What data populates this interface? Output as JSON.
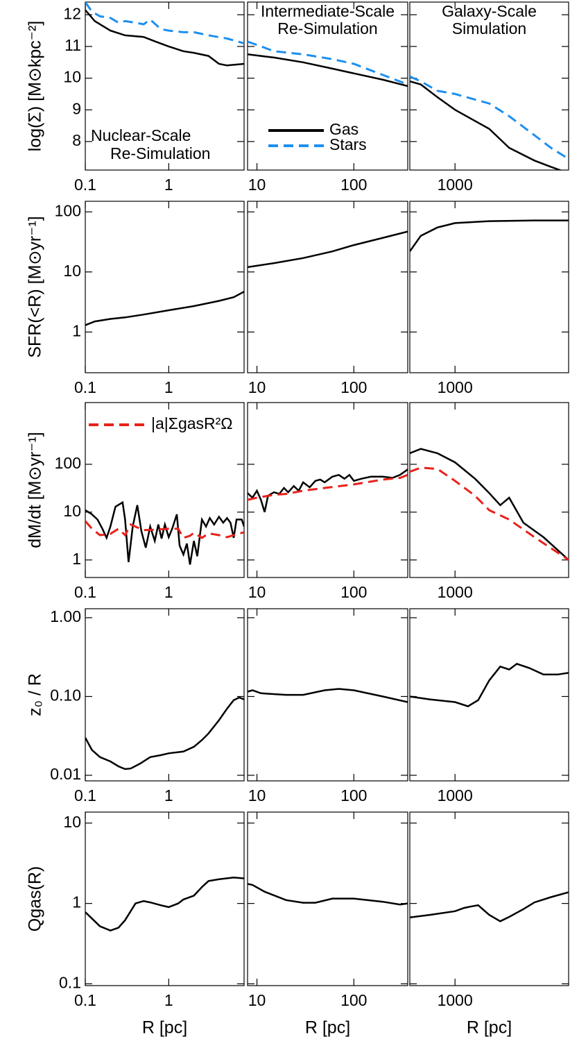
{
  "chart_data": [
    {
      "type": "line",
      "ylabel": "log(Σ)  [M⊙kpc⁻²]",
      "xlim": [
        0.1,
        8
      ],
      "xticks": [
        0.1,
        1
      ],
      "ylim": [
        7.1,
        12.4
      ],
      "yticks": [
        8,
        9,
        10,
        11,
        12
      ],
      "log_x": true,
      "log_y": false,
      "annotation": [
        "Nuclear-Scale",
        "Re-Simulation"
      ],
      "series": [
        {
          "color": "#000000",
          "linestyle": "solid",
          "x": [
            0.1,
            0.13,
            0.2,
            0.3,
            0.5,
            0.7,
            1,
            1.5,
            2,
            3,
            4,
            5,
            8
          ],
          "values": [
            12.15,
            11.8,
            11.5,
            11.35,
            11.3,
            11.15,
            11.0,
            10.85,
            10.8,
            10.7,
            10.45,
            10.4,
            10.45
          ]
        },
        {
          "color": "#1e8fef",
          "linestyle": "dashed",
          "x": [
            0.1,
            0.12,
            0.15,
            0.2,
            0.25,
            0.3,
            0.4,
            0.5,
            0.6,
            0.8,
            1,
            1.5,
            2,
            3,
            5,
            8
          ],
          "values": [
            12.4,
            12.1,
            11.95,
            11.9,
            11.75,
            11.8,
            11.75,
            11.7,
            11.85,
            11.55,
            11.5,
            11.45,
            11.45,
            11.35,
            11.25,
            11.1
          ]
        }
      ]
    },
    {
      "type": "line",
      "xlim": [
        8,
        360
      ],
      "xticks": [
        10,
        100
      ],
      "ylim": [
        7.1,
        12.4
      ],
      "log_x": true,
      "log_y": false,
      "annotation": [
        "Intermediate-Scale",
        "Re-Simulation"
      ],
      "legend": "lower left",
      "series": [
        {
          "name": "Gas",
          "color": "#000000",
          "linestyle": "solid",
          "x": [
            8,
            15,
            30,
            60,
            100,
            200,
            360
          ],
          "values": [
            10.75,
            10.65,
            10.5,
            10.3,
            10.15,
            9.95,
            9.75
          ]
        },
        {
          "name": "Stars",
          "color": "#1e8fef",
          "linestyle": "dashed",
          "x": [
            8,
            10,
            15,
            30,
            60,
            100,
            200,
            360
          ],
          "values": [
            11.15,
            11.05,
            10.85,
            10.75,
            10.6,
            10.45,
            10.1,
            9.8
          ]
        }
      ]
    },
    {
      "type": "line",
      "xlim": [
        400,
        10000
      ],
      "xticks": [
        1000
      ],
      "ylim": [
        7.1,
        12.4
      ],
      "log_x": true,
      "log_y": false,
      "annotation": [
        "Galaxy-Scale",
        "Simulation"
      ],
      "series": [
        {
          "color": "#000000",
          "linestyle": "solid",
          "x": [
            400,
            500,
            700,
            1000,
            2000,
            3000,
            5000,
            7000,
            10000
          ],
          "values": [
            9.9,
            9.8,
            9.4,
            9.0,
            8.4,
            7.8,
            7.4,
            7.2,
            7.0
          ]
        },
        {
          "color": "#1e8fef",
          "linestyle": "dashed",
          "x": [
            400,
            500,
            700,
            1000,
            2000,
            3000,
            5000,
            7000,
            10000
          ],
          "values": [
            10.05,
            9.9,
            9.6,
            9.5,
            9.2,
            8.8,
            8.2,
            7.8,
            7.45
          ]
        }
      ]
    },
    {
      "type": "line",
      "ylabel": "SFR(<R)  [M⊙yr⁻¹]",
      "xlim": [
        0.1,
        8
      ],
      "xticks": [
        0.1,
        1
      ],
      "ylim": [
        0.21,
        150
      ],
      "yticks": [
        1,
        10,
        100
      ],
      "log_x": true,
      "log_y": true,
      "series": [
        {
          "color": "#000000",
          "linestyle": "solid",
          "x": [
            0.1,
            0.13,
            0.2,
            0.3,
            0.5,
            1,
            2,
            4,
            6,
            8
          ],
          "values": [
            1.3,
            1.5,
            1.65,
            1.75,
            1.95,
            2.3,
            2.7,
            3.3,
            3.8,
            4.7
          ]
        }
      ]
    },
    {
      "type": "line",
      "xlim": [
        8,
        360
      ],
      "xticks": [
        10,
        100
      ],
      "ylim": [
        0.21,
        150
      ],
      "log_x": true,
      "log_y": true,
      "series": [
        {
          "color": "#000000",
          "linestyle": "solid",
          "x": [
            8,
            15,
            30,
            60,
            100,
            200,
            360
          ],
          "values": [
            12,
            14,
            17,
            22,
            28,
            37,
            47
          ]
        }
      ]
    },
    {
      "type": "line",
      "xlim": [
        400,
        10000
      ],
      "xticks": [
        1000
      ],
      "ylim": [
        0.21,
        150
      ],
      "log_x": true,
      "log_y": true,
      "series": [
        {
          "color": "#000000",
          "linestyle": "solid",
          "x": [
            400,
            500,
            700,
            1000,
            2000,
            5000,
            10000
          ],
          "values": [
            22,
            40,
            55,
            65,
            70,
            72,
            72
          ]
        }
      ]
    },
    {
      "type": "line",
      "ylabel": "dM/dt [M⊙yr⁻¹]",
      "xlim": [
        0.1,
        8
      ],
      "xticks": [
        0.1,
        1
      ],
      "ylim": [
        0.43,
        1950
      ],
      "yticks": [
        1,
        10,
        100
      ],
      "log_x": true,
      "log_y": true,
      "legend": "upper left",
      "series": [
        {
          "color": "#000000",
          "linestyle": "solid",
          "x": [
            0.1,
            0.12,
            0.14,
            0.16,
            0.18,
            0.2,
            0.23,
            0.28,
            0.3,
            0.33,
            0.37,
            0.42,
            0.47,
            0.53,
            0.6,
            0.68,
            0.75,
            0.82,
            0.9,
            1,
            1.1,
            1.25,
            1.35,
            1.5,
            1.65,
            1.8,
            2,
            2.2,
            2.5,
            2.8,
            3.1,
            3.5,
            4,
            4.5,
            5,
            5.5,
            6,
            6.5,
            7.5,
            8
          ],
          "values": [
            11,
            9,
            7,
            4.5,
            2.9,
            5,
            13,
            16,
            7,
            0.9,
            5,
            14,
            4,
            1.8,
            5,
            2.5,
            5.5,
            2.8,
            5.5,
            3,
            4.5,
            9,
            2,
            1.3,
            2.2,
            0.8,
            2.5,
            1.2,
            7,
            5,
            7.5,
            5.5,
            8,
            6,
            7.5,
            6,
            2.9,
            7,
            7,
            5
          ]
        },
        {
          "name": "|a|ΣgasR²Ω",
          "color": "#e8211b",
          "linestyle": "dashed",
          "x": [
            0.1,
            0.12,
            0.15,
            0.2,
            0.25,
            0.3,
            0.35,
            0.5,
            0.7,
            1,
            1.3,
            1.5,
            1.8,
            2,
            2.5,
            3,
            4,
            5,
            6,
            8
          ],
          "values": [
            6.5,
            4.5,
            3.3,
            3.5,
            4.5,
            3.3,
            5.5,
            4.2,
            4.3,
            4.5,
            4.5,
            2.9,
            3.2,
            3.7,
            2.9,
            3.6,
            3.3,
            3.0,
            3.3,
            3.8
          ]
        }
      ]
    },
    {
      "type": "line",
      "xlim": [
        8,
        360
      ],
      "xticks": [
        10,
        100
      ],
      "ylim": [
        0.43,
        1950
      ],
      "log_x": true,
      "log_y": true,
      "series": [
        {
          "color": "#000000",
          "linestyle": "solid",
          "x": [
            8,
            9,
            10,
            11,
            12,
            13,
            15,
            17,
            19,
            21,
            24,
            27,
            30,
            35,
            40,
            45,
            50,
            60,
            70,
            80,
            90,
            100,
            120,
            150,
            200,
            250,
            300,
            360
          ],
          "values": [
            25,
            20,
            28,
            18,
            10,
            22,
            26,
            24,
            32,
            26,
            35,
            28,
            42,
            33,
            45,
            48,
            42,
            55,
            60,
            50,
            60,
            45,
            50,
            55,
            55,
            52,
            60,
            78
          ]
        },
        {
          "color": "#e8211b",
          "linestyle": "dashed",
          "x": [
            8,
            10,
            15,
            20,
            30,
            50,
            100,
            200,
            300,
            360
          ],
          "values": [
            18,
            20,
            23,
            24,
            28,
            32,
            38,
            48,
            52,
            60
          ]
        }
      ]
    },
    {
      "type": "line",
      "xlim": [
        400,
        10000
      ],
      "xticks": [
        1000
      ],
      "ylim": [
        0.43,
        1950
      ],
      "log_x": true,
      "log_y": true,
      "series": [
        {
          "color": "#000000",
          "linestyle": "solid",
          "x": [
            400,
            500,
            700,
            1000,
            1500,
            2000,
            2500,
            3000,
            4000,
            6000,
            10000
          ],
          "values": [
            170,
            210,
            170,
            110,
            50,
            25,
            14,
            20,
            6,
            3,
            1
          ]
        },
        {
          "color": "#e8211b",
          "linestyle": "dashed",
          "x": [
            400,
            500,
            700,
            1000,
            1500,
            2000,
            3000,
            5000,
            10000
          ],
          "values": [
            70,
            85,
            80,
            45,
            22,
            11,
            7,
            3,
            1
          ]
        }
      ]
    },
    {
      "type": "line",
      "ylabel": "z₀ / R",
      "xlim": [
        0.1,
        8
      ],
      "xticks": [
        0.1,
        1
      ],
      "ylim": [
        0.0085,
        1.3
      ],
      "yticks": [
        0.01,
        {
          "value": 0.1,
          "label": "0.10"
        },
        {
          "value": 1,
          "label": "1.00"
        }
      ],
      "log_x": true,
      "log_y": true,
      "series": [
        {
          "color": "#000000",
          "linestyle": "solid",
          "x": [
            0.1,
            0.12,
            0.15,
            0.2,
            0.25,
            0.3,
            0.35,
            0.45,
            0.6,
            0.8,
            1,
            1.5,
            2,
            2.5,
            3,
            4,
            5,
            6,
            7,
            8
          ],
          "values": [
            0.03,
            0.021,
            0.017,
            0.015,
            0.013,
            0.012,
            0.0122,
            0.014,
            0.017,
            0.018,
            0.019,
            0.02,
            0.023,
            0.028,
            0.034,
            0.05,
            0.07,
            0.09,
            0.097,
            0.092
          ]
        }
      ]
    },
    {
      "type": "line",
      "xlim": [
        8,
        360
      ],
      "xticks": [
        10,
        100
      ],
      "ylim": [
        0.0085,
        1.3
      ],
      "log_x": true,
      "log_y": true,
      "series": [
        {
          "color": "#000000",
          "linestyle": "solid",
          "x": [
            8,
            9,
            11,
            20,
            30,
            50,
            70,
            100,
            200,
            360
          ],
          "values": [
            0.115,
            0.12,
            0.11,
            0.105,
            0.105,
            0.12,
            0.125,
            0.12,
            0.1,
            0.085
          ]
        }
      ]
    },
    {
      "type": "line",
      "xlim": [
        400,
        10000
      ],
      "xticks": [
        1000
      ],
      "ylim": [
        0.0085,
        1.3
      ],
      "log_x": true,
      "log_y": true,
      "series": [
        {
          "color": "#000000",
          "linestyle": "solid",
          "x": [
            400,
            600,
            1000,
            1300,
            1600,
            2000,
            2500,
            3000,
            3500,
            4500,
            6000,
            8000,
            10000
          ],
          "values": [
            0.1,
            0.092,
            0.085,
            0.075,
            0.09,
            0.16,
            0.24,
            0.22,
            0.26,
            0.23,
            0.19,
            0.19,
            0.2
          ]
        }
      ]
    },
    {
      "type": "line",
      "ylabel": "Qgas(R)",
      "xlabel": "R  [pc]",
      "xlim": [
        0.1,
        8
      ],
      "xticks": [
        0.1,
        1
      ],
      "ylim": [
        0.095,
        13.7
      ],
      "yticks": [
        0.1,
        1,
        10
      ],
      "log_x": true,
      "log_y": true,
      "series": [
        {
          "color": "#000000",
          "linestyle": "solid",
          "x": [
            0.1,
            0.13,
            0.15,
            0.2,
            0.25,
            0.3,
            0.4,
            0.5,
            0.6,
            0.8,
            1,
            1.3,
            1.5,
            2,
            2.5,
            3,
            4,
            6,
            8
          ],
          "values": [
            0.78,
            0.6,
            0.52,
            0.46,
            0.5,
            0.62,
            1.0,
            1.07,
            1.03,
            0.95,
            0.9,
            1.0,
            1.12,
            1.25,
            1.6,
            1.9,
            2.0,
            2.1,
            2.05
          ]
        }
      ]
    },
    {
      "type": "line",
      "xlabel": "R  [pc]",
      "xlim": [
        8,
        360
      ],
      "xticks": [
        10,
        100
      ],
      "ylim": [
        0.095,
        13.7
      ],
      "log_x": true,
      "log_y": true,
      "series": [
        {
          "color": "#000000",
          "linestyle": "solid",
          "x": [
            8,
            9,
            12,
            20,
            30,
            40,
            60,
            100,
            200,
            300,
            360
          ],
          "values": [
            1.75,
            1.7,
            1.4,
            1.1,
            1.02,
            1.02,
            1.15,
            1.15,
            1.05,
            0.97,
            1.0
          ]
        }
      ]
    },
    {
      "type": "line",
      "xlabel": "R  [pc]",
      "xlim": [
        400,
        10000
      ],
      "xticks": [
        1000
      ],
      "ylim": [
        0.095,
        13.7
      ],
      "log_x": true,
      "log_y": true,
      "series": [
        {
          "color": "#000000",
          "linestyle": "solid",
          "x": [
            400,
            600,
            1000,
            1200,
            1400,
            1600,
            2000,
            2500,
            3000,
            4000,
            5000,
            7000,
            10000
          ],
          "values": [
            0.67,
            0.72,
            0.8,
            0.88,
            0.92,
            0.95,
            0.72,
            0.6,
            0.68,
            0.85,
            1.03,
            1.2,
            1.38
          ]
        }
      ]
    }
  ]
}
